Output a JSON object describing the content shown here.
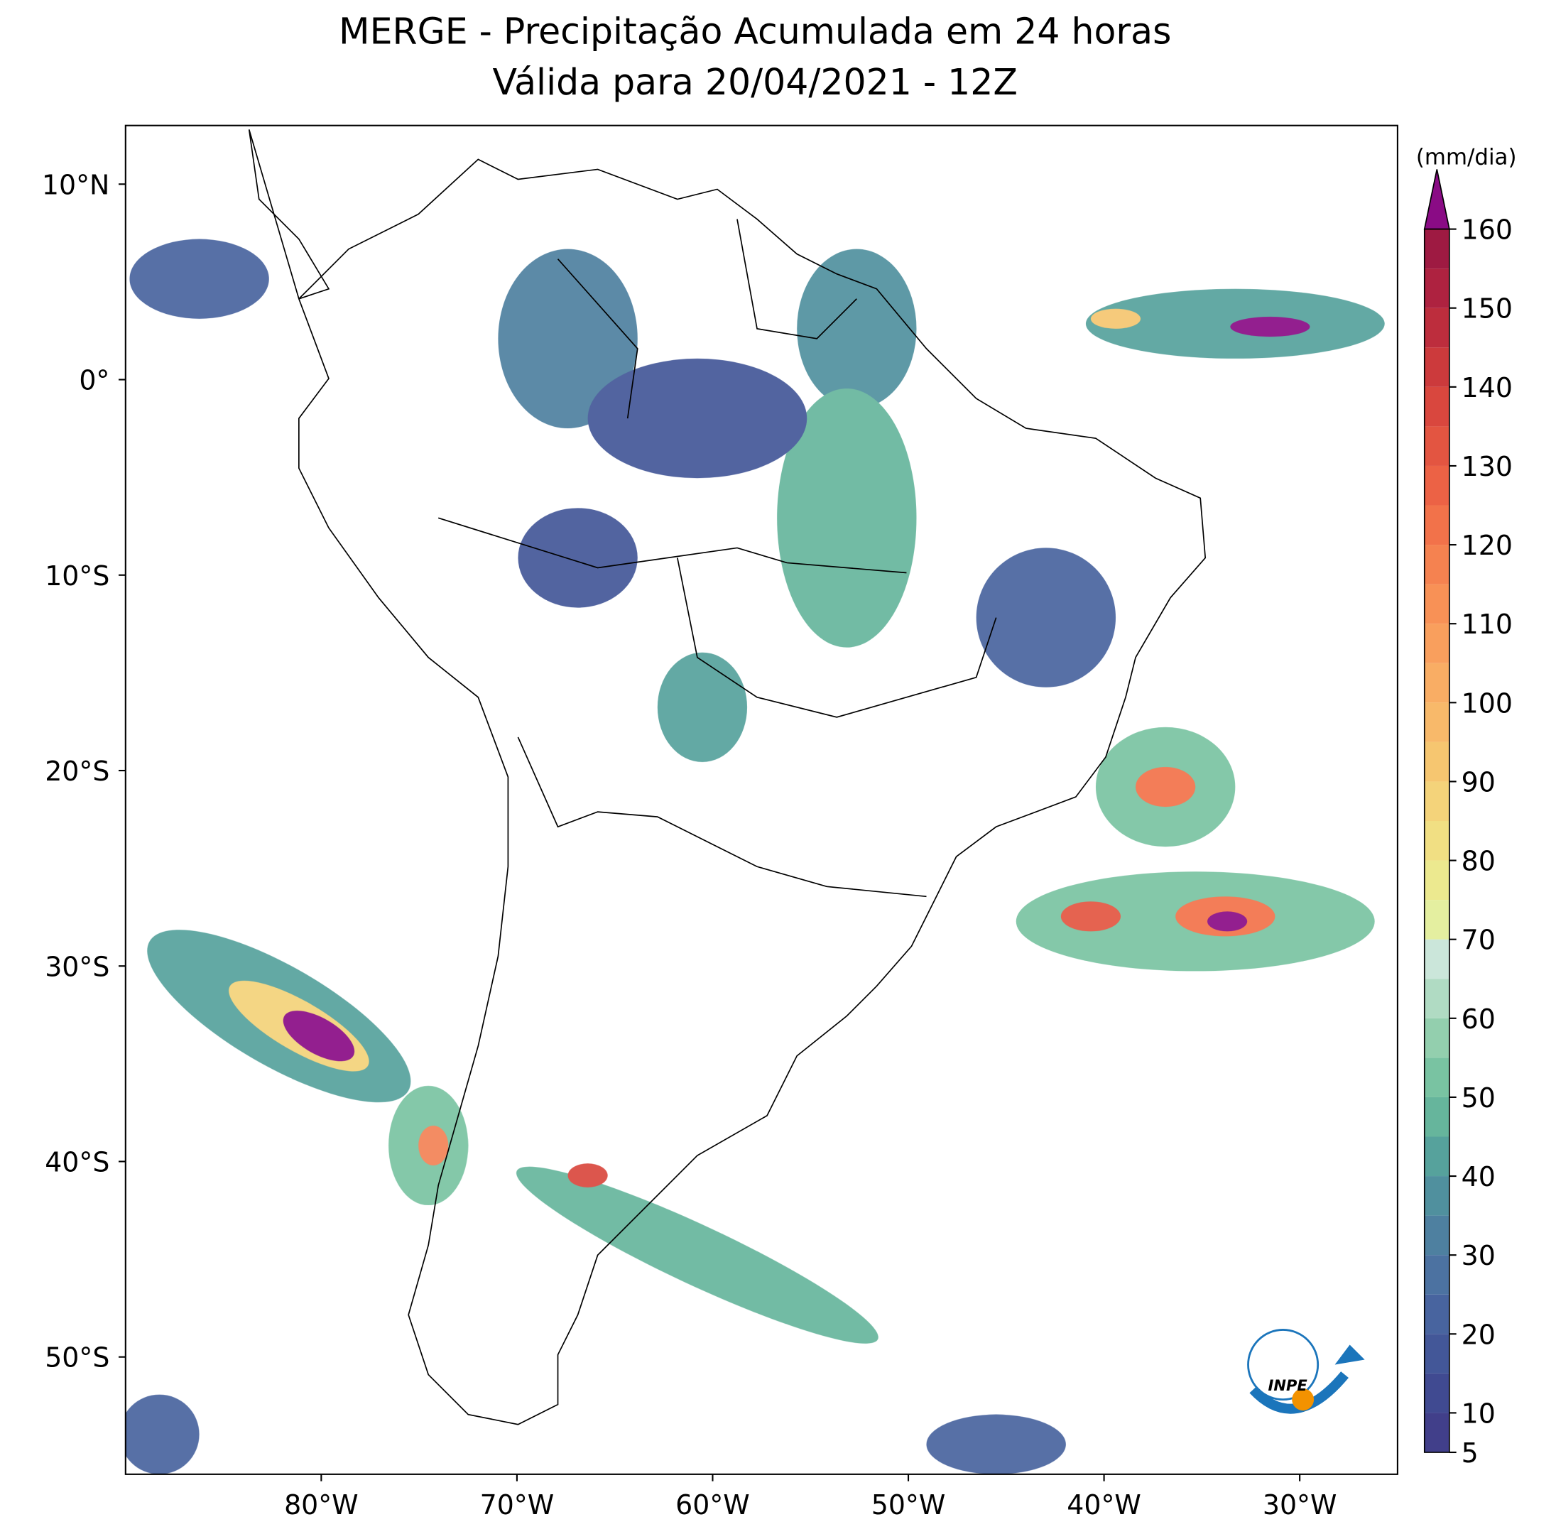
{
  "title": [
    "MERGE - Precipitação Acumulada em 24 horas",
    "Válida para 20/04/2021 - 12Z"
  ],
  "map": {
    "lon_range": [
      -90,
      -25
    ],
    "lat_range": [
      -56,
      13
    ],
    "lon_ticks": [
      {
        "value": -80,
        "label": "80°W"
      },
      {
        "value": -70,
        "label": "70°W"
      },
      {
        "value": -60,
        "label": "60°W"
      },
      {
        "value": -50,
        "label": "50°W"
      },
      {
        "value": -40,
        "label": "40°W"
      },
      {
        "value": -30,
        "label": "30°W"
      }
    ],
    "lat_ticks": [
      {
        "value": 10,
        "label": "10°N"
      },
      {
        "value": 0,
        "label": "0°"
      },
      {
        "value": -10,
        "label": "10°S"
      },
      {
        "value": -20,
        "label": "20°S"
      },
      {
        "value": -30,
        "label": "30°S"
      },
      {
        "value": -40,
        "label": "40°S"
      },
      {
        "value": -50,
        "label": "50°S"
      }
    ]
  },
  "colorbar": {
    "unit": "(mm/dia)",
    "levels": [
      5,
      10,
      15,
      20,
      25,
      30,
      35,
      40,
      45,
      50,
      55,
      60,
      65,
      70,
      75,
      80,
      85,
      90,
      95,
      100,
      105,
      110,
      115,
      120,
      125,
      130,
      135,
      140,
      145,
      150,
      155,
      160
    ],
    "ticks": [
      5,
      10,
      20,
      30,
      40,
      50,
      60,
      70,
      80,
      90,
      100,
      110,
      120,
      130,
      140,
      150,
      160
    ],
    "colors": [
      "#413f8a",
      "#404a91",
      "#435798",
      "#48649f",
      "#4c72a1",
      "#4e80a0",
      "#50909e",
      "#56a29c",
      "#66b59c",
      "#79c3a2",
      "#93cfae",
      "#b0dbc3",
      "#cbe6da",
      "#e4efa0",
      "#ece98f",
      "#f1df83",
      "#f4d37a",
      "#f6c670",
      "#f8b96a",
      "#f9ad64",
      "#f99f5d",
      "#f89156",
      "#f58250",
      "#f2724a",
      "#ec6245",
      "#e35541",
      "#d9473e",
      "#cc3a3c",
      "#bd2d3d",
      "#ae2240",
      "#9e1a42"
    ],
    "extend_color": "#8a0b85"
  },
  "logo": "INPE"
}
